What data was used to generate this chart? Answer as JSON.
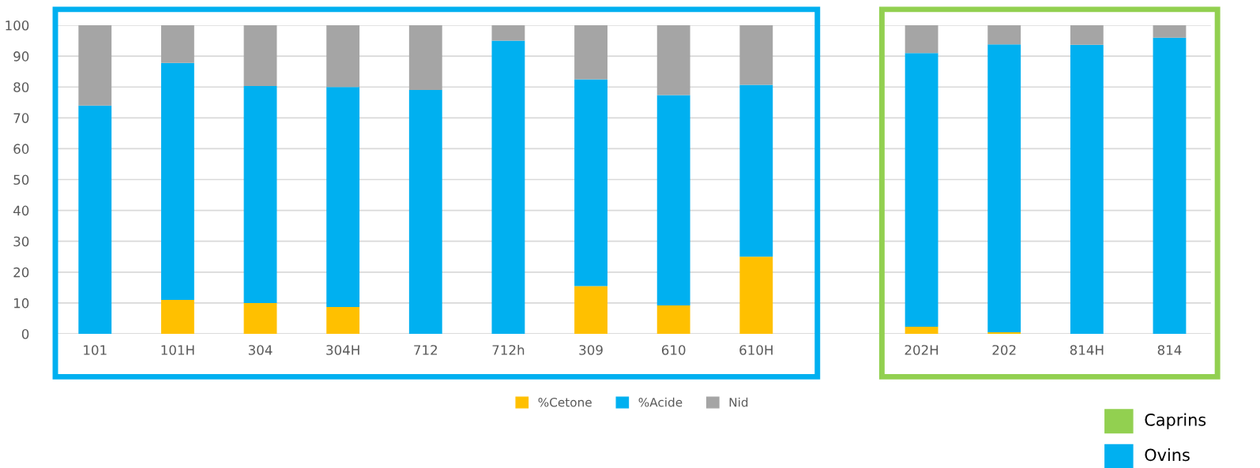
{
  "chart_data": {
    "type": "bar",
    "stacked": true,
    "categories": [
      "101",
      "101H",
      "304",
      "304H",
      "712",
      "712h",
      "309",
      "610",
      "610H",
      null,
      "202H",
      "202",
      "814H",
      "814"
    ],
    "series": [
      {
        "name": "%Cetone",
        "color": "#ffc000",
        "values": [
          0,
          11,
          10,
          8.7,
          0,
          0,
          15.5,
          9.2,
          25,
          null,
          2.3,
          0.5,
          0,
          0
        ]
      },
      {
        "name": "%Acide",
        "color": "#00b0f0",
        "values": [
          74,
          76.8,
          70.3,
          71.3,
          79,
          95,
          67,
          68.2,
          55.7,
          null,
          88.7,
          93.3,
          93.7,
          96
        ]
      },
      {
        "name": "Nid",
        "color": "#a5a5a5",
        "values": [
          26,
          12.2,
          19.7,
          20,
          21,
          5,
          17.5,
          22.6,
          19.3,
          null,
          9,
          6.2,
          6.3,
          4
        ]
      }
    ],
    "ylim": [
      0,
      100
    ],
    "yticks": [
      0,
      10,
      20,
      30,
      40,
      50,
      60,
      70,
      80,
      90,
      100
    ],
    "grid": "y",
    "legend": "bottom",
    "annotations": [
      "Caprins",
      "Ovins"
    ]
  }
}
